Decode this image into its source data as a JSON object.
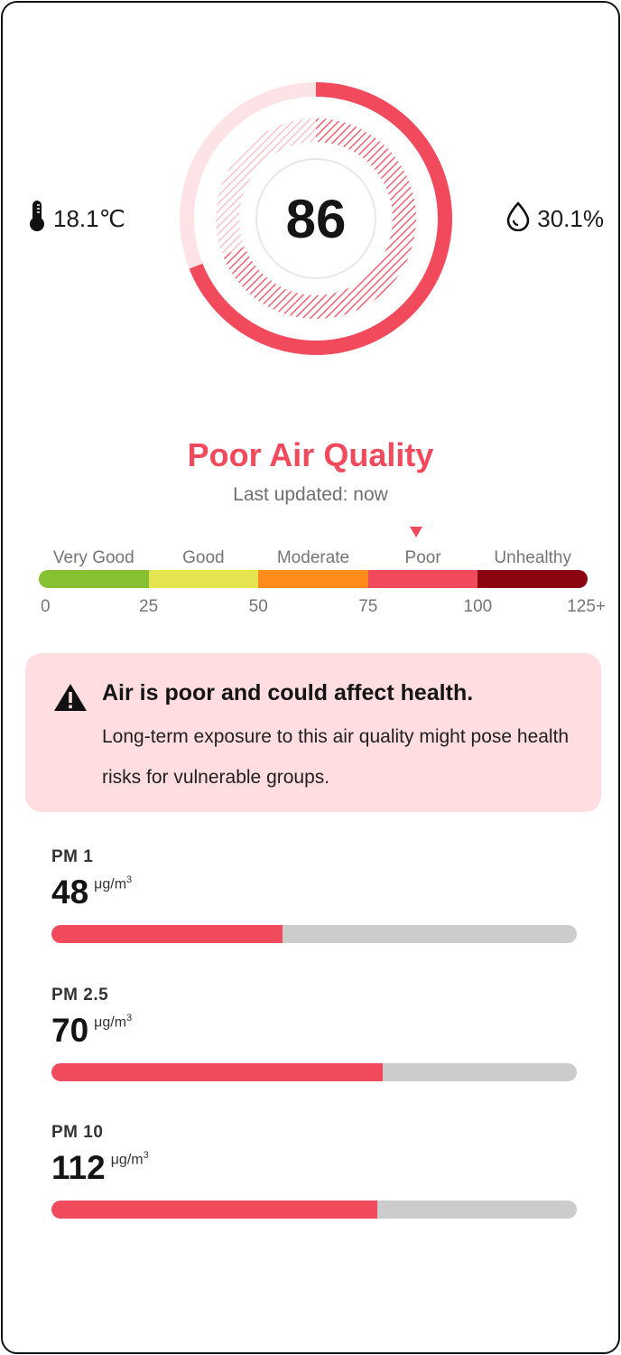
{
  "environment": {
    "temperature": "18.1℃",
    "temperature_icon": "thermometer-icon",
    "humidity": "30.1%",
    "humidity_icon": "water-drop-icon"
  },
  "aqi": {
    "value": "86",
    "level_fraction": 0.69,
    "color": "#f24a5d",
    "track_color": "#fde3e6"
  },
  "status": {
    "title": "Poor Air Quality",
    "updated": "Last updated: now",
    "color": "#f24a5d"
  },
  "scale": {
    "labels": [
      "Very Good",
      "Good",
      "Moderate",
      "Poor",
      "Unhealthy"
    ],
    "colors": [
      "#87c031",
      "#e3e44f",
      "#ff8c1a",
      "#f24a5d",
      "#8b0510"
    ],
    "ticks": [
      "0",
      "25",
      "50",
      "75",
      "100",
      "125+"
    ],
    "marker_value": 86,
    "marker_icon": "triangle-down-icon"
  },
  "alert": {
    "icon": "warning-icon",
    "title": "Air is poor and could affect health.",
    "body": "Long-term exposure to this air quality might pose health risks for vulnerable groups.",
    "background": "#ffdde1"
  },
  "metrics": [
    {
      "label": "PM 1",
      "value": "48",
      "unit": "μg/m",
      "unit_exp": "3",
      "fraction": 0.44
    },
    {
      "label": "PM 2.5",
      "value": "70",
      "unit": "μg/m",
      "unit_exp": "3",
      "fraction": 0.63
    },
    {
      "label": "PM 10",
      "value": "112",
      "unit": "μg/m",
      "unit_exp": "3",
      "fraction": 0.62
    }
  ],
  "colors": {
    "bar_fill": "#f24a5d",
    "bar_track": "#cccccc"
  }
}
